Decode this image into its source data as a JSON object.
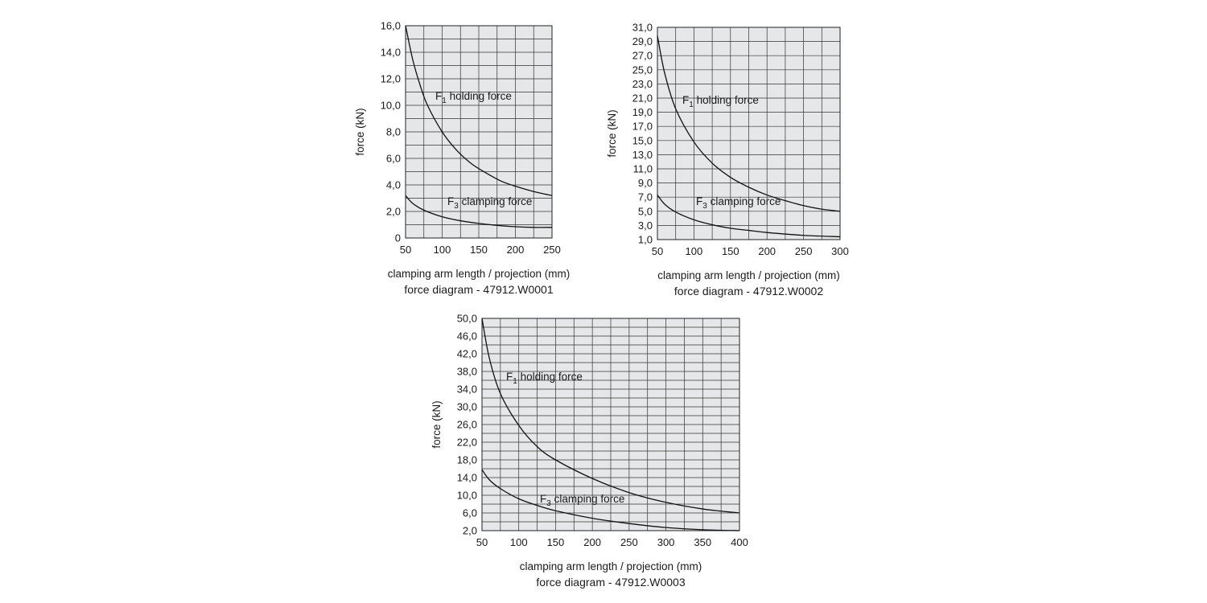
{
  "chart_data": [
    {
      "type": "line",
      "ylabel": "force (kN)",
      "xlabel": "clamping arm length / projection (mm)",
      "caption": "force diagram - 47912.W0001",
      "xlim": [
        50,
        250
      ],
      "ylim": [
        0,
        16
      ],
      "xticks": [
        50,
        100,
        150,
        200,
        250
      ],
      "yticks": [
        0,
        2,
        4,
        6,
        8,
        10,
        12,
        14,
        16
      ],
      "xtick_labels": [
        "50",
        "100",
        "150",
        "200",
        "250"
      ],
      "ytick_labels": [
        "0",
        "2,0",
        "4,0",
        "6,0",
        "8,0",
        "10,0",
        "12,0",
        "14,0",
        "16,0"
      ],
      "grid": true,
      "grid_x_step": 25,
      "grid_y_step": 1,
      "series": [
        {
          "name": "F1 holding force",
          "label_main": "F",
          "label_sub": "1",
          "label_rest": " holding force",
          "x": [
            50,
            60,
            70,
            80,
            100,
            120,
            140,
            160,
            180,
            200,
            225,
            250
          ],
          "y": [
            16.0,
            13.4,
            11.5,
            10.0,
            8.0,
            6.6,
            5.6,
            4.9,
            4.3,
            3.9,
            3.5,
            3.2
          ]
        },
        {
          "name": "F3 clamping force",
          "label_main": "F",
          "label_sub": "3",
          "label_rest": " clamping force",
          "x": [
            50,
            60,
            75,
            100,
            125,
            150,
            175,
            200,
            225,
            250
          ],
          "y": [
            3.2,
            2.6,
            2.1,
            1.6,
            1.3,
            1.1,
            0.95,
            0.85,
            0.8,
            0.8
          ]
        }
      ]
    },
    {
      "type": "line",
      "ylabel": "force (kN)",
      "xlabel": "clamping arm length / projection (mm)",
      "caption": "force diagram - 47912.W0002",
      "xlim": [
        50,
        300
      ],
      "ylim": [
        1,
        31
      ],
      "xticks": [
        50,
        100,
        150,
        200,
        250,
        300
      ],
      "yticks": [
        1,
        3,
        5,
        7,
        9,
        11,
        13,
        15,
        17,
        19,
        21,
        23,
        25,
        27,
        29,
        31
      ],
      "xtick_labels": [
        "50",
        "100",
        "150",
        "200",
        "250",
        "300"
      ],
      "ytick_labels": [
        "1,0",
        "3,0",
        "5,0",
        "7,0",
        "9,0",
        "11,0",
        "13,0",
        "15,0",
        "17,0",
        "19,0",
        "21,0",
        "23,0",
        "25,0",
        "27,0",
        "29,0",
        "31,0"
      ],
      "grid": true,
      "grid_x_step": 25,
      "grid_y_step": 2,
      "series": [
        {
          "name": "F1 holding force",
          "label_main": "F",
          "label_sub": "1",
          "label_rest": " holding force",
          "x": [
            50,
            60,
            75,
            100,
            125,
            150,
            175,
            200,
            225,
            250,
            275,
            300
          ],
          "y": [
            29.8,
            24.5,
            19.5,
            14.8,
            11.8,
            9.8,
            8.4,
            7.3,
            6.5,
            5.8,
            5.3,
            5.0
          ]
        },
        {
          "name": "F3 clamping force",
          "label_main": "F",
          "label_sub": "3",
          "label_rest": " clamping force",
          "x": [
            50,
            60,
            75,
            100,
            125,
            150,
            175,
            200,
            250,
            300
          ],
          "y": [
            7.3,
            6.0,
            4.9,
            3.8,
            3.1,
            2.6,
            2.3,
            2.0,
            1.6,
            1.4
          ]
        }
      ]
    },
    {
      "type": "line",
      "ylabel": "force (kN)",
      "xlabel": "clamping arm length / projection (mm)",
      "caption": "force diagram - 47912.W0003",
      "xlim": [
        50,
        400
      ],
      "ylim": [
        2,
        50
      ],
      "xticks": [
        50,
        100,
        150,
        200,
        250,
        300,
        350,
        400
      ],
      "yticks": [
        2,
        6,
        10,
        14,
        18,
        22,
        26,
        30,
        34,
        38,
        42,
        46,
        50
      ],
      "xtick_labels": [
        "50",
        "100",
        "150",
        "200",
        "250",
        "300",
        "350",
        "400"
      ],
      "ytick_labels": [
        "2,0",
        "6,0",
        "10,0",
        "14,0",
        "18,0",
        "22,0",
        "26,0",
        "30,0",
        "34,0",
        "38,0",
        "42,0",
        "46,0",
        "50,0"
      ],
      "grid": true,
      "grid_x_step": 25,
      "grid_y_step": 2,
      "series": [
        {
          "name": "F1 holding force",
          "label_main": "F",
          "label_sub": "1",
          "label_rest": " holding force",
          "x": [
            50,
            60,
            75,
            100,
            125,
            150,
            200,
            250,
            300,
            350,
            400
          ],
          "y": [
            50.0,
            41.0,
            33.0,
            25.8,
            21.0,
            18.0,
            13.8,
            10.6,
            8.4,
            6.9,
            6.0
          ]
        },
        {
          "name": "F3 clamping force",
          "label_main": "F",
          "label_sub": "3",
          "label_rest": " clamping force",
          "x": [
            50,
            60,
            75,
            100,
            125,
            150,
            200,
            250,
            300,
            350,
            400
          ],
          "y": [
            15.8,
            13.5,
            11.5,
            9.2,
            7.7,
            6.5,
            4.8,
            3.6,
            2.7,
            2.2,
            2.0
          ]
        }
      ]
    }
  ]
}
